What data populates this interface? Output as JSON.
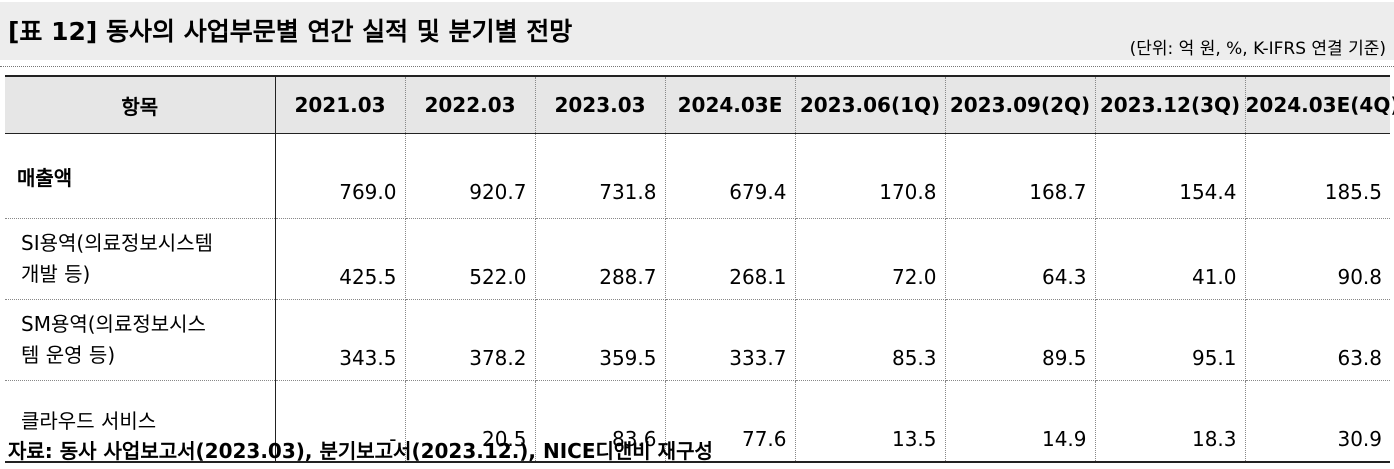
{
  "title": "[표 12] 동사의 사업부문별 연간 실적 및 분기별 전망",
  "unit_note": "(단위: 억 원, %, K-IFRS 연결 기준)",
  "table": {
    "headers": [
      "항목",
      "2021.03",
      "2022.03",
      "2023.03",
      "2024.03E",
      "2023.06(1Q)",
      "2023.09(2Q)",
      "2023.12(3Q)",
      "2024.03E(4Q)"
    ],
    "rows": [
      {
        "label": "매출액",
        "values": [
          "769.0",
          "920.7",
          "731.8",
          "679.4",
          "170.8",
          "168.7",
          "154.4",
          "185.5"
        ]
      },
      {
        "label_line1": "SI용역(의료정보시스템",
        "label_line2": "개발 등)",
        "values": [
          "425.5",
          "522.0",
          "288.7",
          "268.1",
          "72.0",
          "64.3",
          "41.0",
          "90.8"
        ]
      },
      {
        "label_line1": "SM용역(의료정보시스",
        "label_line2": "템 운영 등)",
        "values": [
          "343.5",
          "378.2",
          "359.5",
          "333.7",
          "85.3",
          "89.5",
          "95.1",
          "63.8"
        ]
      },
      {
        "label": "클라우드 서비스",
        "values": [
          "-",
          "20.5",
          "83.6",
          "77.6",
          "13.5",
          "14.9",
          "18.3",
          "30.9"
        ]
      }
    ]
  },
  "source": "자료: 동사 사업보고서(2023.03), 분기보고서(2023.12.), NICE디앤비 재구성"
}
